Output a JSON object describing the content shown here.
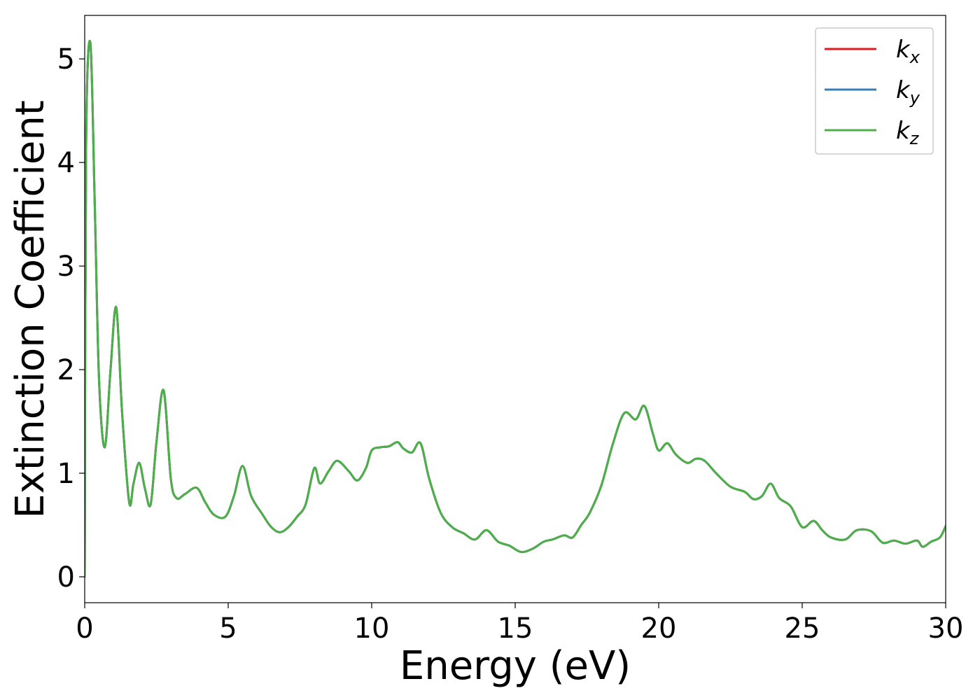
{
  "chart_data": {
    "type": "line",
    "title": "",
    "xlabel": "Energy (eV)",
    "ylabel": "Extinction Coefficient",
    "xlim": [
      0,
      30
    ],
    "ylim": [
      -0.25,
      5.42
    ],
    "xticks": [
      0,
      5,
      10,
      15,
      20,
      25,
      30
    ],
    "yticks": [
      0,
      1,
      2,
      3,
      4,
      5
    ],
    "grid": false,
    "legend_position": "top-right",
    "series": [
      {
        "name": "k",
        "subscript": "x",
        "color": "#e41a1c"
      },
      {
        "name": "k",
        "subscript": "y",
        "color": "#377eb8"
      },
      {
        "name": "k",
        "subscript": "z",
        "color": "#4daf4a"
      }
    ],
    "x": [
      0,
      0.05,
      0.2,
      0.35,
      0.5,
      0.7,
      0.9,
      1.1,
      1.3,
      1.55,
      1.7,
      1.9,
      2.1,
      2.3,
      2.5,
      2.75,
      3.0,
      3.2,
      3.5,
      3.9,
      4.2,
      4.5,
      4.9,
      5.2,
      5.5,
      5.8,
      6.2,
      6.5,
      6.8,
      7.1,
      7.4,
      7.7,
      8.0,
      8.2,
      8.5,
      8.8,
      9.2,
      9.5,
      9.8,
      10.0,
      10.3,
      10.6,
      10.9,
      11.1,
      11.4,
      11.7,
      12.0,
      12.4,
      12.8,
      13.2,
      13.6,
      14.0,
      14.4,
      14.8,
      15.2,
      15.6,
      16.0,
      16.3,
      16.7,
      17.0,
      17.3,
      17.6,
      18.0,
      18.4,
      18.8,
      19.2,
      19.5,
      19.8,
      20.0,
      20.3,
      20.6,
      21.0,
      21.3,
      21.6,
      22.0,
      22.5,
      23.0,
      23.3,
      23.6,
      23.9,
      24.2,
      24.6,
      25.0,
      25.4,
      25.7,
      26.0,
      26.5,
      26.9,
      27.4,
      27.8,
      28.2,
      28.6,
      29.0,
      29.2,
      29.5,
      29.8,
      30.0
    ],
    "values": [
      0.0,
      4.2,
      5.15,
      3.6,
      1.9,
      1.25,
      2.0,
      2.6,
      1.6,
      0.72,
      0.9,
      1.1,
      0.85,
      0.7,
      1.3,
      1.8,
      0.95,
      0.76,
      0.8,
      0.86,
      0.72,
      0.6,
      0.58,
      0.78,
      1.07,
      0.78,
      0.6,
      0.48,
      0.43,
      0.48,
      0.58,
      0.7,
      1.05,
      0.9,
      1.02,
      1.12,
      1.02,
      0.93,
      1.05,
      1.22,
      1.25,
      1.26,
      1.3,
      1.24,
      1.2,
      1.29,
      0.95,
      0.62,
      0.48,
      0.42,
      0.36,
      0.45,
      0.34,
      0.3,
      0.24,
      0.27,
      0.34,
      0.36,
      0.4,
      0.38,
      0.5,
      0.62,
      0.88,
      1.28,
      1.58,
      1.52,
      1.65,
      1.38,
      1.22,
      1.29,
      1.18,
      1.1,
      1.14,
      1.12,
      1.0,
      0.87,
      0.82,
      0.75,
      0.78,
      0.9,
      0.76,
      0.68,
      0.48,
      0.54,
      0.45,
      0.38,
      0.36,
      0.45,
      0.44,
      0.33,
      0.35,
      0.32,
      0.35,
      0.29,
      0.34,
      0.38,
      0.49
    ]
  }
}
